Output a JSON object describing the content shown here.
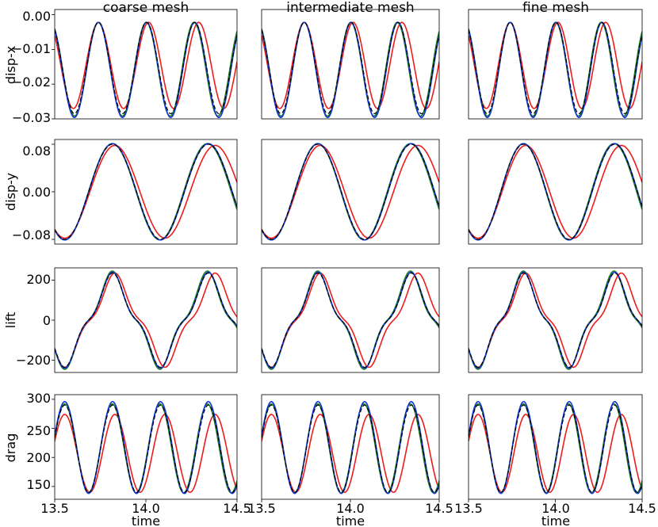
{
  "columns": [
    "coarse mesh",
    "intermediate mesh",
    "fine mesh"
  ],
  "rows": [
    "disp-x",
    "disp-y",
    "lift",
    "drag"
  ],
  "xlabel": "time",
  "xticks": [
    "13.5",
    "14.0",
    "14.5"
  ],
  "colors": {
    "red": "#ee1c1c",
    "green": "#1a7a1a",
    "blue": "#1036d6",
    "black": "#000000"
  },
  "yticks": {
    "disp-x": [
      "0.00",
      "−0.01",
      "−0.02",
      "−0.03"
    ],
    "disp-y": [
      "0.08",
      "0.00",
      "−0.08"
    ],
    "lift": [
      "200",
      "0",
      "−200"
    ],
    "drag": [
      "300",
      "250",
      "200",
      "150"
    ]
  },
  "chart_data": {
    "type": "line",
    "layout": "4x3 grid of panels; rows share y-axis, columns share x-axis",
    "x_range": [
      13.5,
      14.5
    ],
    "panels": {
      "disp-x": {
        "ylim": [
          -0.03,
          0.0015
        ],
        "ytick_values": [
          0.0,
          -0.01,
          -0.02,
          -0.03
        ],
        "series": [
          {
            "color": "blue",
            "period": 0.264,
            "phase": 13.74,
            "max": -0.0022,
            "min": -0.0296
          },
          {
            "color": "black",
            "period": 0.264,
            "phase": 13.74,
            "max": -0.0022,
            "min": -0.0285,
            "dashed": true
          },
          {
            "color": "green",
            "period": 0.262,
            "phase": 13.74,
            "max": -0.0022,
            "min": -0.0292
          },
          {
            "color": "red",
            "period": 0.275,
            "phase": 13.74,
            "max": -0.0022,
            "min": -0.027
          }
        ]
      },
      "disp-y": {
        "ylim": [
          -0.088,
          0.088
        ],
        "ytick_values": [
          0.08,
          0.0,
          -0.08
        ],
        "series": [
          {
            "color": "blue",
            "period": 0.525,
            "phase": 13.555,
            "amplitude": 0.081
          },
          {
            "color": "black",
            "period": 0.525,
            "phase": 13.555,
            "amplitude": 0.08,
            "dashed": true
          },
          {
            "color": "green",
            "period": 0.522,
            "phase": 13.555,
            "amplitude": 0.081
          },
          {
            "color": "red",
            "period": 0.55,
            "phase": 13.555,
            "amplitude": 0.078
          }
        ]
      },
      "lift": {
        "ylim": [
          -262,
          262
        ],
        "ytick_values": [
          200,
          0,
          -200
        ],
        "series": [
          {
            "color": "blue",
            "period": 0.525,
            "phase": 13.555,
            "amplitude": 240
          },
          {
            "color": "black",
            "period": 0.525,
            "phase": 13.555,
            "amplitude": 236,
            "dashed": true
          },
          {
            "color": "green",
            "period": 0.522,
            "phase": 13.555,
            "amplitude": 246
          },
          {
            "color": "red",
            "period": 0.55,
            "phase": 13.555,
            "amplitude": 236
          }
        ]
      },
      "drag": {
        "ylim": [
          128,
          308
        ],
        "ytick_values": [
          300,
          250,
          200,
          150
        ],
        "series": [
          {
            "color": "blue",
            "period": 0.2625,
            "phase": 13.555,
            "max": 296,
            "min": 138
          },
          {
            "color": "black",
            "period": 0.2625,
            "phase": 13.555,
            "max": 290,
            "min": 140,
            "dashed": true
          },
          {
            "color": "green",
            "period": 0.261,
            "phase": 13.555,
            "max": 292,
            "min": 139
          },
          {
            "color": "red",
            "period": 0.275,
            "phase": 13.555,
            "max": 274,
            "min": 140
          }
        ]
      }
    }
  }
}
